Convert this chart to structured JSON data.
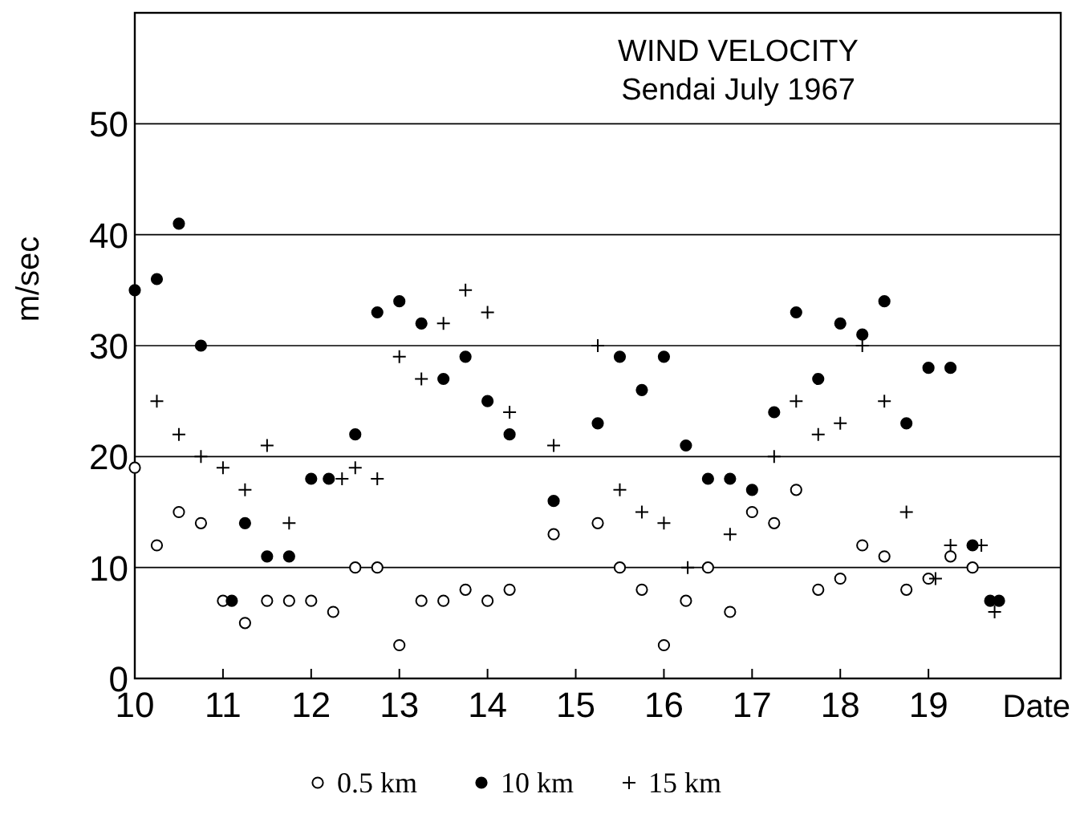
{
  "chart_data": {
    "type": "scatter",
    "title": "WIND VELOCITY",
    "subtitle": "Sendai July 1967",
    "xlabel": "Date",
    "ylabel": "m/sec",
    "xlim": [
      10,
      20.5
    ],
    "xticks": [
      10,
      11,
      12,
      13,
      14,
      15,
      16,
      17,
      18,
      19
    ],
    "ylim": [
      0,
      60
    ],
    "yticks": [
      0,
      10,
      20,
      30,
      40,
      50
    ],
    "grid": "y",
    "legend": "bottom",
    "series": [
      {
        "name": "0.5 km",
        "color": "#000000",
        "marker": "circle",
        "x": [
          10,
          10.25,
          10.5,
          10.75,
          11,
          11.25,
          11.5,
          11.75,
          12,
          12.25,
          12.5,
          12.75,
          13,
          13.25,
          13.5,
          13.75,
          14,
          14.25,
          14.75,
          15.25,
          15.5,
          15.75,
          16,
          16.25,
          16.5,
          16.75,
          17,
          17.25,
          17.5,
          17.75,
          18,
          18.25,
          18.5,
          18.75,
          19,
          19.25,
          19.5
        ],
        "values": [
          19,
          12,
          15,
          14,
          7,
          5,
          7,
          7,
          7,
          6,
          10,
          10,
          3,
          7,
          7,
          8,
          7,
          8,
          13,
          14,
          10,
          8,
          3,
          7,
          10,
          6,
          15,
          14,
          17,
          8,
          9,
          12,
          11,
          8,
          9,
          11,
          10
        ]
      },
      {
        "name": "10 km",
        "color": "#000000",
        "marker": "circle",
        "x": [
          10,
          10.25,
          10.5,
          10.75,
          11.1,
          11.25,
          11.5,
          11.75,
          12,
          12.2,
          12.5,
          12.75,
          13,
          13.25,
          13.5,
          13.75,
          14,
          14.25,
          14.75,
          15.25,
          15.5,
          15.75,
          16,
          16.25,
          16.5,
          16.75,
          17,
          17.25,
          17.5,
          17.75,
          18,
          18.25,
          18.5,
          18.75,
          19,
          19.25,
          19.5,
          19.7,
          19.8
        ],
        "values": [
          35,
          36,
          41,
          30,
          7,
          14,
          11,
          11,
          18,
          18,
          22,
          33,
          34,
          32,
          27,
          29,
          25,
          22,
          16,
          23,
          29,
          26,
          29,
          21,
          18,
          18,
          17,
          24,
          33,
          27,
          32,
          31,
          34,
          23,
          28,
          28,
          12,
          7,
          7
        ]
      },
      {
        "name": "15 km",
        "color": "#000000",
        "marker": "cross",
        "x": [
          10.25,
          10.5,
          10.75,
          11,
          11.25,
          11.5,
          11.75,
          12.35,
          12.5,
          12.75,
          13,
          13.25,
          13.5,
          13.75,
          14,
          14.25,
          14.75,
          15.25,
          15.5,
          15.75,
          16,
          16.27,
          16.75,
          17.25,
          17.5,
          17.75,
          18,
          18.25,
          18.5,
          18.75,
          19.08,
          19.25,
          19.6,
          19.75
        ],
        "values": [
          25,
          22,
          20,
          19,
          17,
          21,
          14,
          18,
          19,
          18,
          29,
          27,
          32,
          35,
          33,
          24,
          21,
          30,
          17,
          15,
          14,
          10,
          13,
          20,
          25,
          22,
          23,
          30,
          25,
          15,
          9,
          12,
          12,
          6
        ]
      }
    ]
  }
}
